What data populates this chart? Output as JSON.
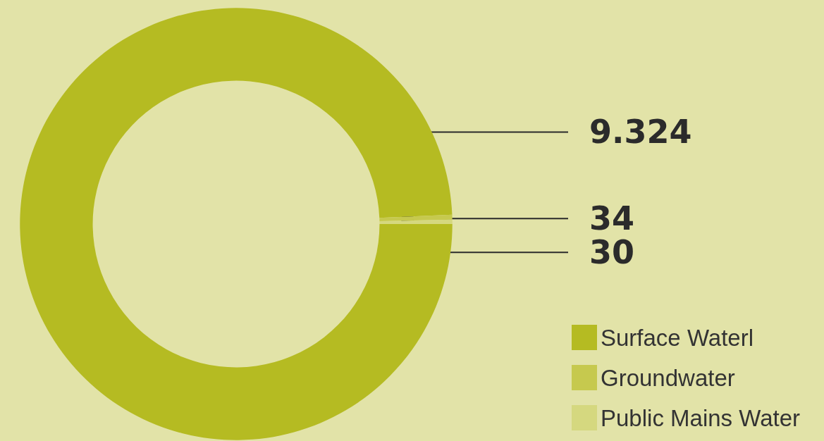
{
  "chart_data": {
    "type": "donut",
    "categories": [
      "Surface Waterl",
      "Groundwater",
      "Public Mains Water"
    ],
    "values": [
      9324,
      34,
      30
    ],
    "value_labels": [
      "9.324",
      "34",
      "30"
    ],
    "colors": [
      "#b5bb22",
      "#c6c94e",
      "#d5d87f"
    ],
    "legend": "bottom right"
  }
}
